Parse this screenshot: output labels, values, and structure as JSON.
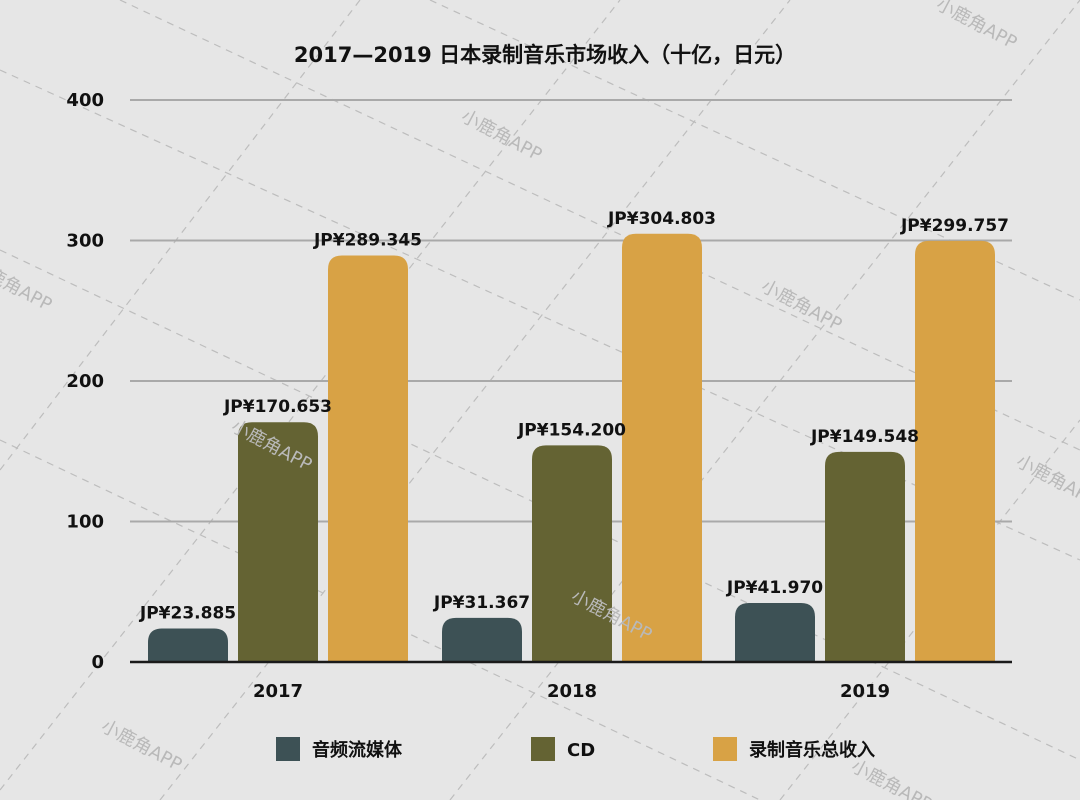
{
  "watermark": {
    "text": "小鹿角APP",
    "color": "#b9b9b9",
    "line_color": "#bdbdbd"
  },
  "chart_data": {
    "type": "bar",
    "title": "2017—2019 日本录制音乐市场收入（十亿，日元）",
    "xlabel": "",
    "ylabel": "",
    "categories": [
      "2017",
      "2018",
      "2019"
    ],
    "ylim": [
      0,
      400
    ],
    "yticks": [
      0,
      100,
      200,
      300,
      400
    ],
    "grid": true,
    "legend_position": "bottom",
    "series": [
      {
        "name": "音频流媒体",
        "color": "#3d5155",
        "values": [
          23.885,
          31.367,
          41.97
        ],
        "labels": [
          "JP¥23.885",
          "JP¥31.367",
          "JP¥41.970"
        ]
      },
      {
        "name": "CD",
        "color": "#646333",
        "values": [
          170.653,
          154.2,
          149.548
        ],
        "labels": [
          "JP¥170.653",
          "JP¥154.200",
          "JP¥149.548"
        ]
      },
      {
        "name": "录制音乐总收入",
        "color": "#d8a245",
        "values": [
          289.345,
          304.803,
          299.757
        ],
        "labels": [
          "JP¥289.345",
          "JP¥304.803",
          "JP¥299.757"
        ]
      }
    ]
  }
}
